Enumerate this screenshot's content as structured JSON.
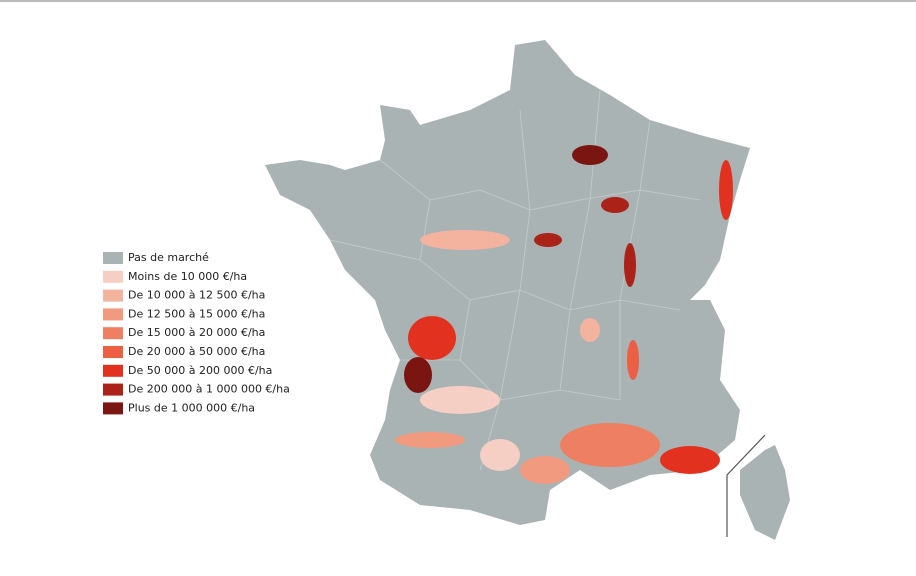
{
  "legend": {
    "items": [
      {
        "label": "Pas de marché",
        "color": "#a9b3b4"
      },
      {
        "label": "Moins de 10 000 €/ha",
        "color": "#f6cfc4"
      },
      {
        "label": "De 10 000 à 12 500 €/ha",
        "color": "#f4b39f"
      },
      {
        "label": "De 12 500 à 15 000 €/ha",
        "color": "#f29a80"
      },
      {
        "label": "De 15 000 à 20 000 €/ha",
        "color": "#ef7f63"
      },
      {
        "label": "De 20 000 à 50 000 €/ha",
        "color": "#ec5f45"
      },
      {
        "label": "De 50 000 à 200 000 €/ha",
        "color": "#e2321f"
      },
      {
        "label": "De 200 000 à 1 000 000 €/ha",
        "color": "#aa2218"
      },
      {
        "label": "Plus de 1 000 000 €/ha",
        "color": "#7a1512"
      }
    ]
  }
}
